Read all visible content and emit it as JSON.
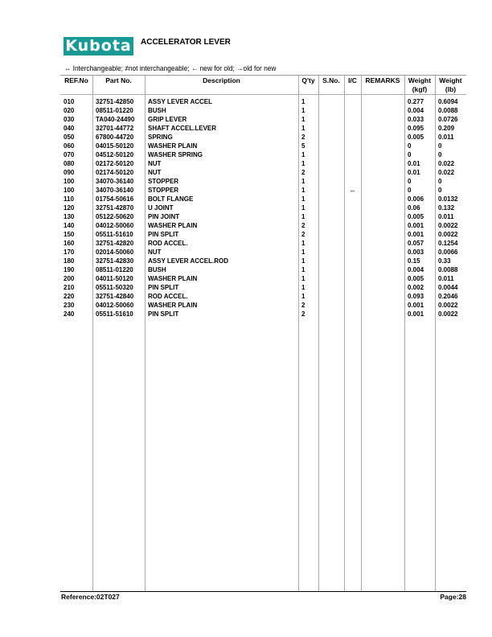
{
  "header": {
    "logo": "Kubota",
    "title": "ACCELERATOR LEVER",
    "brand_color": "#1a9a96"
  },
  "legend": "↔ Interchangeable;   ≠not interchangeable;   ← new for old;   →old for new",
  "columns": [
    "REF.No",
    "Part No.",
    "Description",
    "Q'ty",
    "S.No.",
    "I/C",
    "REMARKS",
    "Weight (kgf)",
    "Weight (lb)"
  ],
  "rows": [
    [
      "010",
      "32751-42850",
      "ASSY LEVER ACCEL",
      "1",
      "",
      "",
      "",
      "0.277",
      "0.6094"
    ],
    [
      "020",
      "08511-01220",
      "BUSH",
      "1",
      "",
      "",
      "",
      "0.004",
      "0.0088"
    ],
    [
      "030",
      "TA040-24490",
      "GRIP LEVER",
      "1",
      "",
      "",
      "",
      "0.033",
      "0.0726"
    ],
    [
      "040",
      "32701-44772",
      "SHAFT ACCEL.LEVER",
      "1",
      "",
      "",
      "",
      "0.095",
      "0.209"
    ],
    [
      "050",
      "67800-44720",
      "SPRING",
      "2",
      "",
      "",
      "",
      "0.005",
      "0.011"
    ],
    [
      "060",
      "04015-50120",
      "WASHER PLAIN",
      "5",
      "",
      "",
      "",
      "0",
      "0"
    ],
    [
      "070",
      "04512-50120",
      "WASHER SPRING",
      "1",
      "",
      "",
      "",
      "0",
      "0"
    ],
    [
      "080",
      "02172-50120",
      "NUT",
      "1",
      "",
      "",
      "",
      "0.01",
      "0.022"
    ],
    [
      "090",
      "02174-50120",
      "NUT",
      "2",
      "",
      "",
      "",
      "0.01",
      "0.022"
    ],
    [
      "100",
      "34070-36140",
      "STOPPER",
      "1",
      "",
      "",
      "",
      "0",
      "0"
    ],
    [
      "100",
      "34070-36140",
      "STOPPER",
      "1",
      "",
      "↔",
      "",
      "0",
      "0"
    ],
    [
      "110",
      "01754-50616",
      "BOLT FLANGE",
      "1",
      "",
      "",
      "",
      "0.006",
      "0.0132"
    ],
    [
      "120",
      "32751-42870",
      "U JOINT",
      "1",
      "",
      "",
      "",
      "0.06",
      "0.132"
    ],
    [
      "130",
      "05122-50620",
      "PIN JOINT",
      "1",
      "",
      "",
      "",
      "0.005",
      "0.011"
    ],
    [
      "140",
      "04012-50060",
      "WASHER PLAIN",
      "2",
      "",
      "",
      "",
      "0.001",
      "0.0022"
    ],
    [
      "150",
      "05511-51610",
      "PIN SPLIT",
      "2",
      "",
      "",
      "",
      "0.001",
      "0.0022"
    ],
    [
      "160",
      "32751-42820",
      "ROD ACCEL.",
      "1",
      "",
      "",
      "",
      "0.057",
      "0.1254"
    ],
    [
      "170",
      "02014-50060",
      "NUT",
      "1",
      "",
      "",
      "",
      "0.003",
      "0.0066"
    ],
    [
      "180",
      "32751-42830",
      "ASSY LEVER ACCEL.ROD",
      "1",
      "",
      "",
      "",
      "0.15",
      "0.33"
    ],
    [
      "190",
      "08511-01220",
      "BUSH",
      "1",
      "",
      "",
      "",
      "0.004",
      "0.0088"
    ],
    [
      "200",
      "04011-50120",
      "WASHER PLAIN",
      "1",
      "",
      "",
      "",
      "0.005",
      "0.011"
    ],
    [
      "210",
      "05511-50320",
      "PIN SPLIT",
      "1",
      "",
      "",
      "",
      "0.002",
      "0.0044"
    ],
    [
      "220",
      "32751-42840",
      "ROD ACCEL.",
      "1",
      "",
      "",
      "",
      "0.093",
      "0.2046"
    ],
    [
      "230",
      "04012-50060",
      "WASHER PLAIN",
      "2",
      "",
      "",
      "",
      "0.001",
      "0.0022"
    ],
    [
      "240",
      "05511-51610",
      "PIN SPLIT",
      "2",
      "",
      "",
      "",
      "0.001",
      "0.0022"
    ]
  ],
  "footer": {
    "reference": "Reference:02T027",
    "page": "Page:28"
  }
}
